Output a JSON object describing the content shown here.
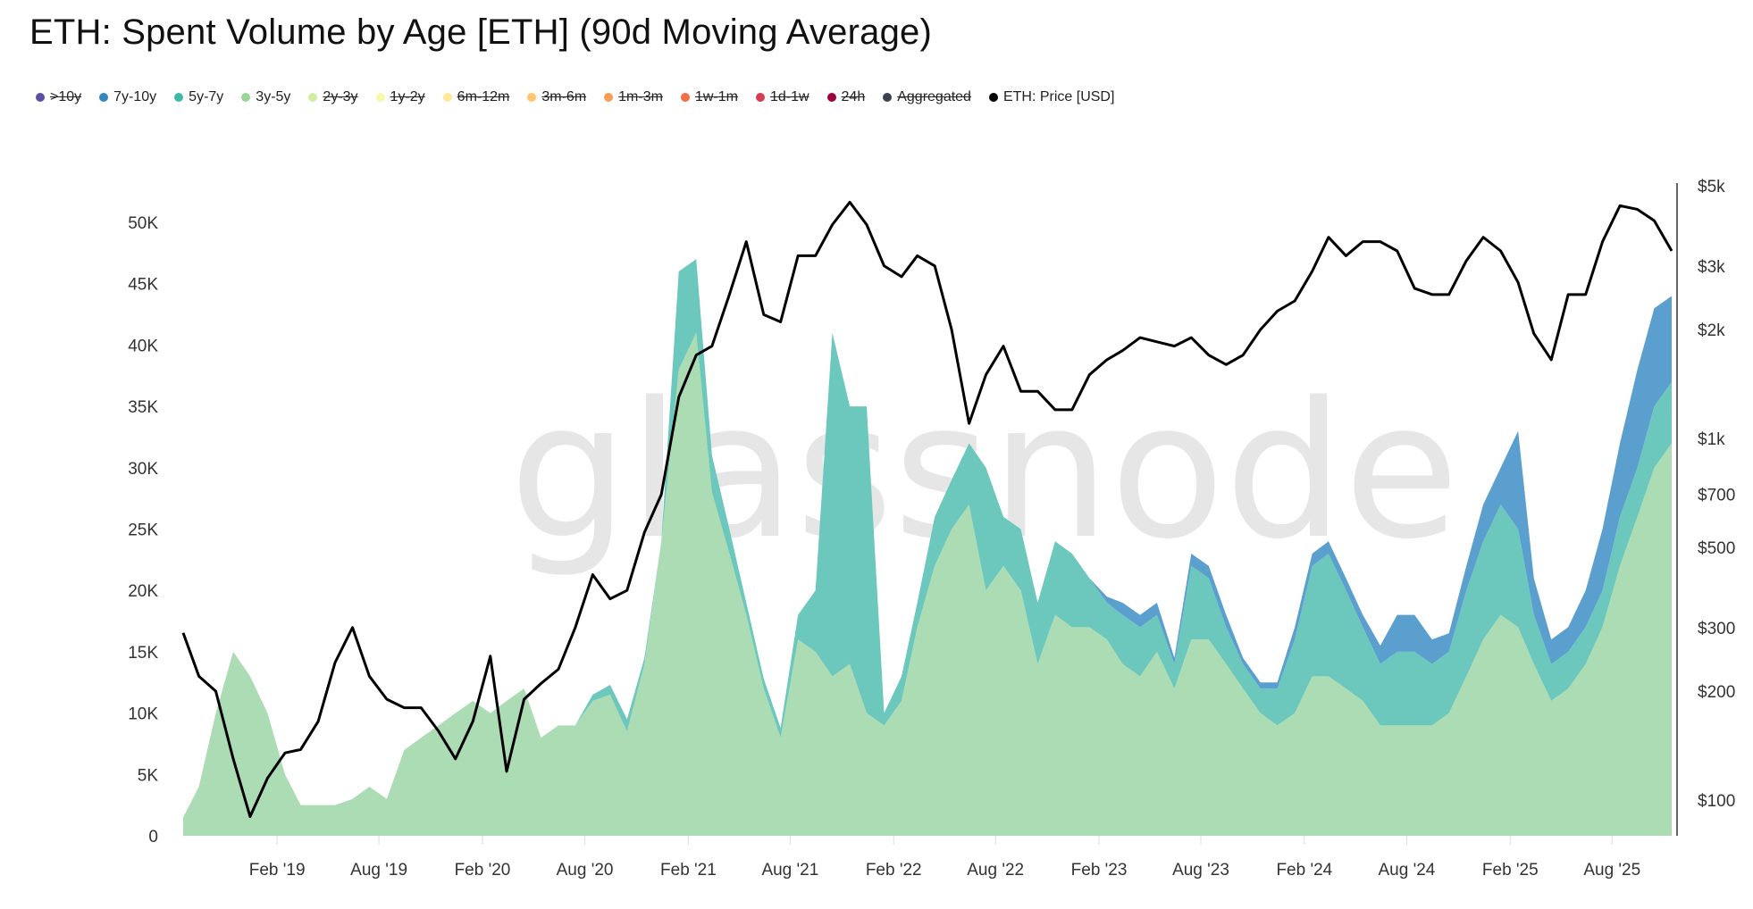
{
  "title": "ETH: Spent Volume by Age [ETH] (90d Moving Average)",
  "watermark": "glassnode",
  "legend": [
    {
      "label": ">10y",
      "color": "#5e4fa2",
      "active": false
    },
    {
      "label": "7y-10y",
      "color": "#3288bd",
      "active": true
    },
    {
      "label": "5y-7y",
      "color": "#3fb8a8",
      "active": true
    },
    {
      "label": "3y-5y",
      "color": "#99d594",
      "active": true
    },
    {
      "label": "2y-3y",
      "color": "#cfee9e",
      "active": false
    },
    {
      "label": "1y-2y",
      "color": "#f7f9a8",
      "active": false
    },
    {
      "label": "6m-12m",
      "color": "#fee99a",
      "active": false
    },
    {
      "label": "3m-6m",
      "color": "#fdc66f",
      "active": false
    },
    {
      "label": "1m-3m",
      "color": "#f99a55",
      "active": false
    },
    {
      "label": "1w-1m",
      "color": "#f46d43",
      "active": false
    },
    {
      "label": "1d-1w",
      "color": "#d53e4f",
      "active": false
    },
    {
      "label": "24h",
      "color": "#9e0142",
      "active": false
    },
    {
      "label": "Aggregated",
      "color": "#3a4150",
      "active": false
    },
    {
      "label": "ETH: Price [USD]",
      "color": "#000000",
      "active": true
    }
  ],
  "chart_data": {
    "type": "area",
    "stacked": true,
    "title": "ETH: Spent Volume by Age [ETH] (90d Moving Average)",
    "xlim": [
      "2018-08-18",
      "2025-11-15"
    ],
    "x_ticks": [
      {
        "date": "2019-02-01",
        "label": "Feb '19"
      },
      {
        "date": "2019-08-01",
        "label": "Aug '19"
      },
      {
        "date": "2020-02-01",
        "label": "Feb '20"
      },
      {
        "date": "2020-08-01",
        "label": "Aug '20"
      },
      {
        "date": "2021-02-01",
        "label": "Feb '21"
      },
      {
        "date": "2021-08-01",
        "label": "Aug '21"
      },
      {
        "date": "2022-02-01",
        "label": "Feb '22"
      },
      {
        "date": "2022-08-01",
        "label": "Aug '22"
      },
      {
        "date": "2023-02-01",
        "label": "Feb '23"
      },
      {
        "date": "2023-08-01",
        "label": "Aug '23"
      },
      {
        "date": "2024-02-01",
        "label": "Feb '24"
      },
      {
        "date": "2024-08-01",
        "label": "Aug '24"
      },
      {
        "date": "2025-02-01",
        "label": "Feb '25"
      },
      {
        "date": "2025-08-01",
        "label": "Aug '25"
      }
    ],
    "y_left": {
      "ticks": [
        0,
        5000,
        10000,
        15000,
        20000,
        25000,
        30000,
        35000,
        40000,
        45000,
        50000
      ],
      "tick_labels": [
        "0",
        "5K",
        "10K",
        "15K",
        "20K",
        "25K",
        "30K",
        "35K",
        "40K",
        "45K",
        "50K"
      ],
      "unit": "ETH"
    },
    "y_right": {
      "scale": "log",
      "ticks": [
        100,
        200,
        300,
        500,
        700,
        1000,
        2000,
        3000,
        5000
      ],
      "tick_labels": [
        "$100",
        "$200",
        "$300",
        "$500",
        "$700",
        "$1k",
        "$2k",
        "$3k",
        "$5k"
      ],
      "unit": "USD"
    },
    "grid": false,
    "legend_position": "top-left",
    "dates": [
      "2018-08-15",
      "2018-09-15",
      "2018-10-15",
      "2018-11-15",
      "2018-12-15",
      "2019-01-15",
      "2019-02-15",
      "2019-03-15",
      "2019-04-15",
      "2019-05-15",
      "2019-06-15",
      "2019-07-15",
      "2019-08-15",
      "2019-09-15",
      "2019-10-15",
      "2019-11-15",
      "2019-12-15",
      "2020-01-15",
      "2020-02-15",
      "2020-03-15",
      "2020-04-15",
      "2020-05-15",
      "2020-06-15",
      "2020-07-15",
      "2020-08-15",
      "2020-09-15",
      "2020-10-15",
      "2020-11-15",
      "2020-12-15",
      "2021-01-15",
      "2021-02-15",
      "2021-03-15",
      "2021-04-15",
      "2021-05-15",
      "2021-06-15",
      "2021-07-15",
      "2021-08-15",
      "2021-09-15",
      "2021-10-15",
      "2021-11-15",
      "2021-12-15",
      "2022-01-15",
      "2022-02-15",
      "2022-03-15",
      "2022-04-15",
      "2022-05-15",
      "2022-06-15",
      "2022-07-15",
      "2022-08-15",
      "2022-09-15",
      "2022-10-15",
      "2022-11-15",
      "2022-12-15",
      "2023-01-15",
      "2023-02-15",
      "2023-03-15",
      "2023-04-15",
      "2023-05-15",
      "2023-06-15",
      "2023-07-15",
      "2023-08-15",
      "2023-09-15",
      "2023-10-15",
      "2023-11-15",
      "2023-12-15",
      "2024-01-15",
      "2024-02-15",
      "2024-03-15",
      "2024-04-15",
      "2024-05-15",
      "2024-06-15",
      "2024-07-15",
      "2024-08-15",
      "2024-09-15",
      "2024-10-15",
      "2024-11-15",
      "2024-12-15",
      "2025-01-15",
      "2025-02-15",
      "2025-03-15",
      "2025-04-15",
      "2025-05-15",
      "2025-06-15",
      "2025-07-15",
      "2025-08-15",
      "2025-09-15",
      "2025-10-15",
      "2025-11-15"
    ],
    "series": [
      {
        "name": "3y-5y",
        "axis": "left",
        "color": "#acdcb3",
        "values": [
          1500,
          4000,
          10000,
          15000,
          13000,
          10000,
          5000,
          2500,
          2500,
          2500,
          3000,
          4000,
          3000,
          7000,
          8000,
          9000,
          10000,
          11000,
          10000,
          11000,
          12000,
          8000,
          9000,
          9000,
          11000,
          11500,
          8500,
          14000,
          24000,
          38000,
          41000,
          28000,
          23000,
          18000,
          12000,
          8000,
          16000,
          15000,
          13000,
          14000,
          10000,
          9000,
          11000,
          17000,
          22000,
          25000,
          27000,
          20000,
          22000,
          20000,
          14000,
          18000,
          17000,
          17000,
          16000,
          14000,
          13000,
          15000,
          12000,
          16000,
          16000,
          14000,
          12000,
          10000,
          9000,
          10000,
          13000,
          13000,
          12000,
          11000,
          9000,
          9000,
          9000,
          9000,
          10000,
          13000,
          16000,
          18000,
          17000,
          14000,
          11000,
          12000,
          14000,
          17000,
          22000,
          26000,
          30000,
          32000
        ]
      },
      {
        "name": "5y-7y",
        "axis": "left",
        "color": "#6cc7bc",
        "values": [
          0,
          0,
          0,
          0,
          0,
          0,
          0,
          0,
          0,
          0,
          0,
          0,
          0,
          0,
          0,
          0,
          0,
          0,
          0,
          0,
          0,
          0,
          0,
          0,
          500,
          800,
          1000,
          500,
          0,
          8000,
          6000,
          3000,
          2000,
          1000,
          800,
          800,
          2000,
          5000,
          28000,
          21000,
          25000,
          1000,
          2000,
          2000,
          4000,
          4000,
          5000,
          10000,
          4000,
          5000,
          5000,
          6000,
          6000,
          4000,
          3000,
          4000,
          4000,
          3000,
          2000,
          6000,
          5000,
          3000,
          2000,
          2000,
          3000,
          6000,
          9000,
          10000,
          8000,
          6000,
          5000,
          6000,
          6000,
          5000,
          5000,
          7000,
          8000,
          9000,
          8000,
          4000,
          3000,
          3000,
          3000,
          3000,
          4000,
          4000,
          5000,
          5000
        ]
      },
      {
        "name": "7y-10y",
        "axis": "left",
        "color": "#5b9fcf",
        "values": [
          0,
          0,
          0,
          0,
          0,
          0,
          0,
          0,
          0,
          0,
          0,
          0,
          0,
          0,
          0,
          0,
          0,
          0,
          0,
          0,
          0,
          0,
          0,
          0,
          0,
          0,
          0,
          0,
          0,
          0,
          0,
          0,
          0,
          0,
          0,
          0,
          0,
          0,
          0,
          0,
          0,
          0,
          0,
          0,
          0,
          0,
          0,
          0,
          0,
          0,
          0,
          0,
          0,
          0,
          500,
          1000,
          1000,
          1000,
          500,
          1000,
          1000,
          1000,
          500,
          500,
          500,
          1000,
          1000,
          1000,
          1000,
          1000,
          1500,
          3000,
          3000,
          2000,
          1500,
          2000,
          3000,
          3000,
          8000,
          3000,
          2000,
          2000,
          3000,
          5000,
          6000,
          8000,
          8000,
          7000
        ]
      },
      {
        "name": "ETH: Price [USD]",
        "axis": "right",
        "color": "#000000",
        "values": [
          290,
          220,
          200,
          130,
          90,
          115,
          135,
          138,
          165,
          240,
          300,
          220,
          190,
          180,
          180,
          155,
          130,
          165,
          250,
          120,
          190,
          210,
          230,
          300,
          420,
          360,
          380,
          550,
          700,
          1300,
          1700,
          1800,
          2500,
          3500,
          2200,
          2100,
          3200,
          3200,
          3900,
          4500,
          3900,
          3000,
          2800,
          3200,
          3000,
          2000,
          1100,
          1500,
          1800,
          1350,
          1350,
          1200,
          1200,
          1500,
          1650,
          1750,
          1900,
          1850,
          1800,
          1900,
          1700,
          1600,
          1700,
          2000,
          2250,
          2400,
          2900,
          3600,
          3200,
          3500,
          3500,
          3300,
          2600,
          2500,
          2500,
          3100,
          3600,
          3300,
          2700,
          1950,
          1650,
          2500,
          2500,
          3500,
          4400,
          4300,
          4000,
          3300
        ]
      }
    ]
  }
}
